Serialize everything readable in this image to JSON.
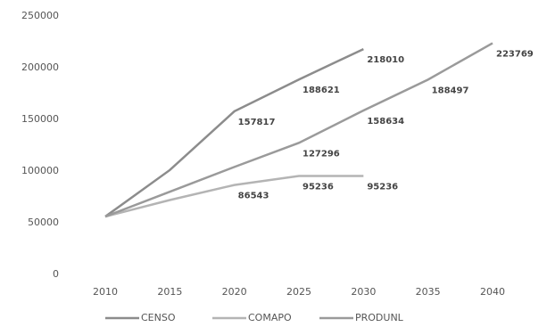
{
  "chart_data": {
    "type": "line",
    "x": [
      2010,
      2015,
      2020,
      2025,
      2030,
      2035,
      2040
    ],
    "xlim": [
      2010,
      2040
    ],
    "xticks": [
      2010,
      2015,
      2020,
      2025,
      2030,
      2035,
      2040
    ],
    "ylim": [
      0,
      250000
    ],
    "yticks": [
      0,
      50000,
      100000,
      150000,
      200000,
      250000
    ],
    "grid": false,
    "legend": "bottom",
    "series": [
      {
        "name": "CENSO",
        "color": "#8c8c8c",
        "values": [
          56000,
          101000,
          157817,
          188621,
          218010,
          null,
          null
        ],
        "data_labels": [
          false,
          false,
          true,
          true,
          true,
          false,
          false
        ]
      },
      {
        "name": "COMAPO",
        "color": "#b4b4b4",
        "values": [
          56000,
          72000,
          86543,
          95236,
          95236,
          null,
          null
        ],
        "data_labels": [
          false,
          false,
          true,
          true,
          true,
          false,
          false
        ]
      },
      {
        "name": "PRODUNL",
        "color": "#9a9a9a",
        "values": [
          56000,
          80000,
          104000,
          127296,
          158634,
          188497,
          223769
        ],
        "data_labels": [
          false,
          false,
          false,
          true,
          true,
          true,
          true
        ]
      }
    ]
  }
}
